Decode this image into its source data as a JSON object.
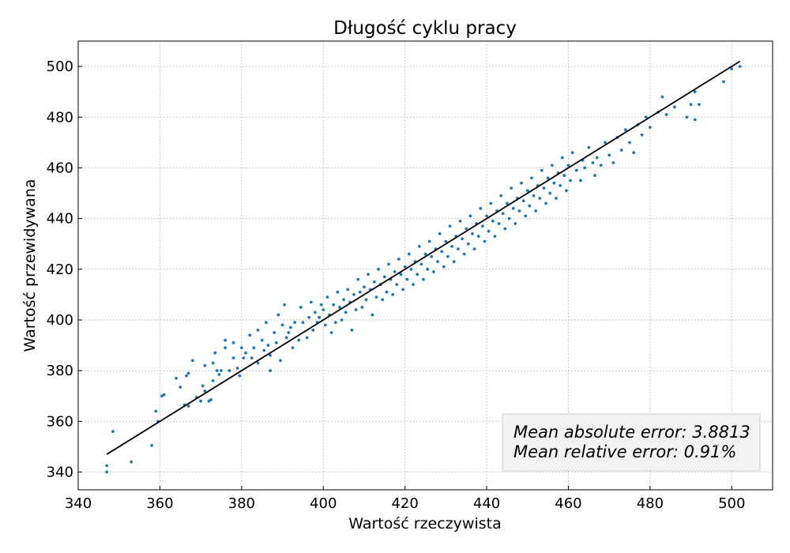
{
  "chart_data": {
    "type": "scatter",
    "title": "Długość cyklu pracy",
    "xlabel": "Wartość rzeczywista",
    "ylabel": "Wartość przewidywana",
    "xlim": [
      340,
      510
    ],
    "ylim": [
      333,
      510
    ],
    "xticks": [
      340,
      360,
      380,
      400,
      420,
      440,
      460,
      480,
      500
    ],
    "yticks": [
      340,
      360,
      380,
      400,
      420,
      440,
      460,
      480,
      500
    ],
    "grid": true,
    "point_color": "#1f77b4",
    "line_color": "#000000",
    "reference_line": {
      "x": [
        347,
        502
      ],
      "y": [
        347,
        502
      ]
    },
    "annotation": {
      "lines": [
        "Mean absolute error: 3.8813",
        "Mean relative error: 0.91%"
      ],
      "placement": "bottom-right"
    },
    "points": [
      [
        347,
        340
      ],
      [
        347,
        342.5
      ],
      [
        348.5,
        356
      ],
      [
        353,
        344
      ],
      [
        358,
        350.5
      ],
      [
        359,
        364
      ],
      [
        359.5,
        360
      ],
      [
        360.5,
        370
      ],
      [
        361,
        370.5
      ],
      [
        364,
        377
      ],
      [
        365,
        373.5
      ],
      [
        366,
        366.5
      ],
      [
        366.5,
        378
      ],
      [
        367,
        366
      ],
      [
        367,
        379
      ],
      [
        368,
        384
      ],
      [
        369,
        369.5
      ],
      [
        370,
        368
      ],
      [
        370.5,
        374
      ],
      [
        371,
        382
      ],
      [
        371,
        372
      ],
      [
        372,
        368
      ],
      [
        372.5,
        368.5
      ],
      [
        373,
        383
      ],
      [
        373,
        376
      ],
      [
        373.5,
        387
      ],
      [
        374,
        380
      ],
      [
        374.5,
        378.5
      ],
      [
        375,
        380
      ],
      [
        376,
        389
      ],
      [
        376,
        392
      ],
      [
        377,
        380
      ],
      [
        378,
        385
      ],
      [
        378,
        391
      ],
      [
        379,
        381
      ],
      [
        379.5,
        378
      ],
      [
        380,
        389
      ],
      [
        380.5,
        385
      ],
      [
        381,
        387
      ],
      [
        382,
        394
      ],
      [
        382.5,
        385
      ],
      [
        383,
        389
      ],
      [
        384,
        383
      ],
      [
        384,
        396
      ],
      [
        385,
        392
      ],
      [
        385.5,
        388
      ],
      [
        386,
        399
      ],
      [
        386.5,
        390
      ],
      [
        387,
        380
      ],
      [
        387,
        386
      ],
      [
        388,
        395
      ],
      [
        388.5,
        391
      ],
      [
        389,
        402
      ],
      [
        389.5,
        384
      ],
      [
        390,
        398
      ],
      [
        390.5,
        406
      ],
      [
        391,
        393
      ],
      [
        391.5,
        395
      ],
      [
        392,
        397
      ],
      [
        392.5,
        389
      ],
      [
        393,
        399
      ],
      [
        394,
        392
      ],
      [
        394.5,
        405
      ],
      [
        395,
        399
      ],
      [
        396,
        393
      ],
      [
        396.5,
        401
      ],
      [
        397,
        407
      ],
      [
        397.5,
        396
      ],
      [
        398,
        403
      ],
      [
        398.5,
        399
      ],
      [
        399,
        401
      ],
      [
        399.5,
        406
      ],
      [
        400,
        404
      ],
      [
        400.5,
        398
      ],
      [
        401,
        409
      ],
      [
        401.5,
        402
      ],
      [
        402,
        395
      ],
      [
        402.5,
        406
      ],
      [
        403,
        399
      ],
      [
        403.5,
        411
      ],
      [
        404,
        405
      ],
      [
        404.5,
        400
      ],
      [
        405,
        408
      ],
      [
        405.5,
        403
      ],
      [
        406,
        412
      ],
      [
        406.5,
        407
      ],
      [
        407,
        396
      ],
      [
        407.5,
        410
      ],
      [
        408,
        404
      ],
      [
        408.5,
        416
      ],
      [
        409,
        411
      ],
      [
        409.5,
        405
      ],
      [
        410,
        413
      ],
      [
        410.5,
        408
      ],
      [
        411,
        418
      ],
      [
        411.5,
        412
      ],
      [
        412,
        402
      ],
      [
        412.5,
        415
      ],
      [
        413,
        409
      ],
      [
        413.5,
        420
      ],
      [
        414,
        414
      ],
      [
        414.5,
        408
      ],
      [
        415,
        417
      ],
      [
        415.5,
        411
      ],
      [
        416,
        422
      ],
      [
        416.5,
        416
      ],
      [
        417,
        410
      ],
      [
        417.5,
        419
      ],
      [
        418,
        414
      ],
      [
        418.5,
        424
      ],
      [
        419,
        418
      ],
      [
        419.5,
        412
      ],
      [
        420,
        421
      ],
      [
        420.5,
        416
      ],
      [
        421,
        426
      ],
      [
        421.5,
        420
      ],
      [
        422,
        414
      ],
      [
        422.5,
        423
      ],
      [
        423,
        418
      ],
      [
        423.5,
        429
      ],
      [
        424,
        422
      ],
      [
        424.5,
        416
      ],
      [
        425,
        426
      ],
      [
        425.5,
        420
      ],
      [
        426,
        431
      ],
      [
        426.5,
        425
      ],
      [
        427,
        419
      ],
      [
        427.5,
        428
      ],
      [
        428,
        423
      ],
      [
        428.5,
        434
      ],
      [
        429,
        427
      ],
      [
        429.5,
        421
      ],
      [
        430,
        431
      ],
      [
        430.5,
        425
      ],
      [
        431,
        437
      ],
      [
        431.5,
        429
      ],
      [
        432,
        423
      ],
      [
        432.5,
        433
      ],
      [
        433,
        428
      ],
      [
        433.5,
        439
      ],
      [
        434,
        432
      ],
      [
        434.5,
        426
      ],
      [
        435,
        436
      ],
      [
        435.5,
        430
      ],
      [
        436,
        441
      ],
      [
        436.5,
        434
      ],
      [
        437,
        428
      ],
      [
        437.5,
        438
      ],
      [
        438,
        433
      ],
      [
        438.5,
        444
      ],
      [
        439,
        437
      ],
      [
        439.5,
        431
      ],
      [
        440,
        441
      ],
      [
        440.5,
        435
      ],
      [
        441,
        446
      ],
      [
        441.5,
        439
      ],
      [
        442,
        433
      ],
      [
        442.5,
        443
      ],
      [
        443,
        438
      ],
      [
        443.5,
        449
      ],
      [
        444,
        442
      ],
      [
        444.5,
        436
      ],
      [
        445,
        446
      ],
      [
        445.5,
        440
      ],
      [
        446,
        452
      ],
      [
        446.5,
        444
      ],
      [
        447,
        438
      ],
      [
        447.5,
        448
      ],
      [
        448,
        443
      ],
      [
        448.5,
        454
      ],
      [
        449,
        447
      ],
      [
        449.5,
        441
      ],
      [
        450,
        451
      ],
      [
        450.5,
        445
      ],
      [
        451,
        456
      ],
      [
        451.5,
        449
      ],
      [
        452,
        443
      ],
      [
        452.5,
        453
      ],
      [
        453,
        448
      ],
      [
        453.5,
        459
      ],
      [
        454,
        452
      ],
      [
        454.5,
        446
      ],
      [
        455,
        456
      ],
      [
        455.5,
        450
      ],
      [
        456,
        461
      ],
      [
        456.5,
        454
      ],
      [
        457,
        448
      ],
      [
        457.5,
        458
      ],
      [
        458,
        453
      ],
      [
        458.5,
        464
      ],
      [
        459,
        457
      ],
      [
        459.5,
        451
      ],
      [
        460,
        461
      ],
      [
        460.5,
        455
      ],
      [
        461,
        466
      ],
      [
        462,
        459
      ],
      [
        463,
        455
      ],
      [
        463.5,
        463
      ],
      [
        464,
        460
      ],
      [
        465,
        468
      ],
      [
        466,
        462
      ],
      [
        466.5,
        457
      ],
      [
        467,
        464
      ],
      [
        468,
        461
      ],
      [
        469,
        470
      ],
      [
        470,
        465
      ],
      [
        471,
        462
      ],
      [
        472,
        472
      ],
      [
        473,
        467
      ],
      [
        474,
        475
      ],
      [
        475,
        470
      ],
      [
        476,
        466
      ],
      [
        477,
        477
      ],
      [
        478,
        473
      ],
      [
        479,
        480
      ],
      [
        480,
        476
      ],
      [
        482,
        482
      ],
      [
        483,
        488
      ],
      [
        484,
        481
      ],
      [
        486,
        484
      ],
      [
        489,
        480
      ],
      [
        490,
        485
      ],
      [
        491,
        490
      ],
      [
        491,
        479
      ],
      [
        492,
        485
      ],
      [
        498,
        494
      ],
      [
        500,
        499
      ],
      [
        502,
        500
      ]
    ]
  }
}
